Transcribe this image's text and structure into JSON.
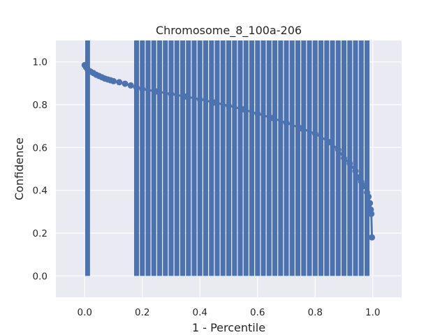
{
  "chart_data": {
    "type": "scatter",
    "title": "Chromosome_8_100a-206",
    "xlabel": "1 - Percentile",
    "ylabel": "Confidence",
    "xlim": [
      -0.1,
      1.1
    ],
    "ylim": [
      -0.1,
      1.1
    ],
    "x_ticks": [
      0.0,
      0.2,
      0.4,
      0.6,
      0.8,
      1.0
    ],
    "x_tick_labels": [
      "0.0",
      "0.2",
      "0.4",
      "0.6",
      "0.8",
      "1.0"
    ],
    "y_ticks": [
      0.0,
      0.2,
      0.4,
      0.6,
      0.8,
      1.0
    ],
    "y_tick_labels": [
      "0.0",
      "0.2",
      "0.4",
      "0.6",
      "0.8",
      "1.0"
    ],
    "grid": true,
    "color": "#4c72b0",
    "background": "#eaeaf2",
    "confidence_curve": {
      "x": [
        0.0,
        0.005,
        0.01,
        0.02,
        0.03,
        0.04,
        0.05,
        0.06,
        0.07,
        0.08,
        0.09,
        0.1,
        0.12,
        0.14,
        0.16,
        0.18,
        0.2,
        0.25,
        0.3,
        0.35,
        0.4,
        0.45,
        0.5,
        0.55,
        0.6,
        0.65,
        0.7,
        0.75,
        0.8,
        0.85,
        0.88,
        0.9,
        0.92,
        0.94,
        0.95,
        0.96,
        0.97,
        0.98,
        0.985,
        0.99,
        0.993,
        0.995,
        0.997
      ],
      "y": [
        0.985,
        0.975,
        0.965,
        0.955,
        0.948,
        0.94,
        0.934,
        0.928,
        0.922,
        0.918,
        0.914,
        0.91,
        0.905,
        0.898,
        0.89,
        0.88,
        0.873,
        0.862,
        0.85,
        0.838,
        0.825,
        0.81,
        0.795,
        0.778,
        0.758,
        0.738,
        0.715,
        0.69,
        0.665,
        0.625,
        0.59,
        0.55,
        0.525,
        0.49,
        0.46,
        0.44,
        0.42,
        0.39,
        0.37,
        0.34,
        0.31,
        0.29,
        0.18
      ]
    },
    "vertical_lines": {
      "x": [
        0.01,
        0.18,
        0.2,
        0.22,
        0.24,
        0.26,
        0.28,
        0.3,
        0.32,
        0.34,
        0.36,
        0.38,
        0.4,
        0.42,
        0.44,
        0.46,
        0.48,
        0.5,
        0.52,
        0.54,
        0.56,
        0.58,
        0.6,
        0.62,
        0.64,
        0.66,
        0.68,
        0.7,
        0.72,
        0.74,
        0.76,
        0.78,
        0.8,
        0.82,
        0.84,
        0.86,
        0.88,
        0.9,
        0.92,
        0.94,
        0.96,
        0.98
      ],
      "y_from": [
        0.0,
        0.0,
        0.0,
        0.0,
        0.0,
        0.0,
        0.0,
        0.0,
        0.0,
        0.0,
        0.0,
        0.0,
        0.0,
        0.0,
        0.0,
        0.0,
        0.0,
        0.0,
        0.0,
        0.0,
        0.0,
        0.0,
        0.0,
        0.0,
        0.0,
        0.0,
        0.0,
        0.0,
        0.0,
        0.0,
        0.0,
        0.0,
        0.0,
        0.0,
        0.0,
        0.0,
        0.0,
        0.0,
        0.0,
        0.0,
        0.0,
        0.0
      ],
      "y_to": [
        1.1,
        1.1,
        1.1,
        1.1,
        1.1,
        1.1,
        1.1,
        1.1,
        1.1,
        1.1,
        1.1,
        1.1,
        1.1,
        1.1,
        1.1,
        1.1,
        1.1,
        1.1,
        1.1,
        1.1,
        1.1,
        1.1,
        1.1,
        1.1,
        1.1,
        1.1,
        1.1,
        1.1,
        1.1,
        1.1,
        1.1,
        1.1,
        1.1,
        1.1,
        1.1,
        1.1,
        1.1,
        1.1,
        1.1,
        1.1,
        1.1,
        1.1
      ]
    }
  }
}
